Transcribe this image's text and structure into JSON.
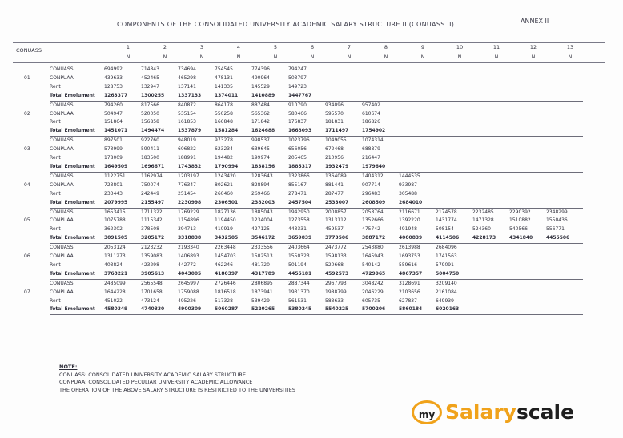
{
  "header": {
    "title": "COMPONENTS OF THE CONSOLIDATED UNIVERSITY ACADEMIC SALARY STRUCTURE II (CONUASS II)",
    "annex": "ANNEX II",
    "col_label": "CONUASS",
    "columns": [
      "1",
      "2",
      "3",
      "4",
      "5",
      "6",
      "7",
      "8",
      "9",
      "10",
      "11",
      "12",
      "13"
    ],
    "col_unit": "N"
  },
  "rows": [
    {
      "code": "01",
      "items": [
        {
          "label": "CONUASS",
          "values": [
            "694992",
            "714843",
            "734694",
            "754545",
            "774396",
            "794247"
          ]
        },
        {
          "label": "CONPUAA",
          "values": [
            "439633",
            "452465",
            "465298",
            "478131",
            "490964",
            "503797"
          ]
        },
        {
          "label": "Rent",
          "values": [
            "128753",
            "132947",
            "137141",
            "141335",
            "145529",
            "149723"
          ]
        },
        {
          "label": "Total Emolument",
          "values": [
            "1263377",
            "1300255",
            "1337133",
            "1374011",
            "1410889",
            "1447767"
          ]
        }
      ]
    },
    {
      "code": "02",
      "items": [
        {
          "label": "CONUASS",
          "values": [
            "794260",
            "817566",
            "840872",
            "864178",
            "887484",
            "910790",
            "934096",
            "957402"
          ]
        },
        {
          "label": "CONPUAA",
          "values": [
            "504947",
            "520050",
            "535154",
            "550258",
            "565362",
            "580466",
            "595570",
            "610674"
          ]
        },
        {
          "label": "Rent",
          "values": [
            "151864",
            "156858",
            "161853",
            "166848",
            "171842",
            "176837",
            "181831",
            "186826"
          ]
        },
        {
          "label": "Total Emolument",
          "values": [
            "1451071",
            "1494474",
            "1537879",
            "1581284",
            "1624688",
            "1668093",
            "1711497",
            "1754902"
          ]
        }
      ]
    },
    {
      "code": "03",
      "items": [
        {
          "label": "CONUASS",
          "values": [
            "897501",
            "922760",
            "948019",
            "973278",
            "998537",
            "1023796",
            "1049055",
            "1074314"
          ]
        },
        {
          "label": "CONPUAA",
          "values": [
            "573999",
            "590411",
            "606822",
            "623234",
            "639645",
            "656056",
            "672468",
            "688879"
          ]
        },
        {
          "label": "Rent",
          "values": [
            "178009",
            "183500",
            "188991",
            "194482",
            "199974",
            "205465",
            "210956",
            "216447"
          ]
        },
        {
          "label": "Total Emolument",
          "values": [
            "1649509",
            "1696671",
            "1743832",
            "1790994",
            "1838156",
            "1885317",
            "1932479",
            "1979640"
          ]
        }
      ]
    },
    {
      "code": "04",
      "items": [
        {
          "label": "CONUASS",
          "values": [
            "1122751",
            "1162974",
            "1203197",
            "1243420",
            "1283643",
            "1323866",
            "1364089",
            "1404312",
            "1444535"
          ]
        },
        {
          "label": "CONPUAA",
          "values": [
            "723801",
            "750074",
            "776347",
            "802621",
            "828894",
            "855167",
            "881441",
            "907714",
            "933987"
          ]
        },
        {
          "label": "Rent",
          "values": [
            "233443",
            "242449",
            "251454",
            "260460",
            "269466",
            "278471",
            "287477",
            "296483",
            "305488"
          ]
        },
        {
          "label": "Total Emolument",
          "values": [
            "2079995",
            "2155497",
            "2230998",
            "2306501",
            "2382003",
            "2457504",
            "2533007",
            "2608509",
            "2684010"
          ]
        }
      ]
    },
    {
      "code": "05",
      "items": [
        {
          "label": "CONUASS",
          "values": [
            "1653415",
            "1711322",
            "1769229",
            "1827136",
            "1885043",
            "1942950",
            "2000857",
            "2058764",
            "2116671",
            "2174578",
            "2232485",
            "2290392",
            "2348299"
          ]
        },
        {
          "label": "CONPUAA",
          "values": [
            "1075788",
            "1115342",
            "1154896",
            "1194450",
            "1234004",
            "1273558",
            "1313112",
            "1352666",
            "1392220",
            "1431774",
            "1471328",
            "1510882",
            "1550436"
          ]
        },
        {
          "label": "Rent",
          "values": [
            "362302",
            "378508",
            "394713",
            "410919",
            "427125",
            "443331",
            "459537",
            "475742",
            "491948",
            "508154",
            "524360",
            "540566",
            "556771"
          ]
        },
        {
          "label": "Total Emolument",
          "values": [
            "3091505",
            "3205172",
            "3318838",
            "3432505",
            "3546172",
            "3659839",
            "3773506",
            "3887172",
            "4000839",
            "4114506",
            "4228173",
            "4341840",
            "4455506"
          ]
        }
      ]
    },
    {
      "code": "06",
      "items": [
        {
          "label": "CONUASS",
          "values": [
            "2053124",
            "2123232",
            "2193340",
            "2263448",
            "2333556",
            "2403664",
            "2473772",
            "2543880",
            "2613988",
            "2684096"
          ]
        },
        {
          "label": "CONPUAA",
          "values": [
            "1311273",
            "1359083",
            "1406893",
            "1454703",
            "1502513",
            "1550323",
            "1598133",
            "1645943",
            "1693753",
            "1741563"
          ]
        },
        {
          "label": "Rent",
          "values": [
            "403824",
            "423298",
            "442772",
            "462246",
            "481720",
            "501194",
            "520668",
            "540142",
            "559616",
            "579091"
          ]
        },
        {
          "label": "Total Emolument",
          "values": [
            "3768221",
            "3905613",
            "4043005",
            "4180397",
            "4317789",
            "4455181",
            "4592573",
            "4729965",
            "4867357",
            "5004750"
          ]
        }
      ]
    },
    {
      "code": "07",
      "items": [
        {
          "label": "CONUASS",
          "values": [
            "2485099",
            "2565548",
            "2645997",
            "2726446",
            "2806895",
            "2887344",
            "2967793",
            "3048242",
            "3128691",
            "3209140"
          ]
        },
        {
          "label": "CONPUAA",
          "values": [
            "1644228",
            "1701658",
            "1759088",
            "1816518",
            "1873941",
            "1931370",
            "1988799",
            "2046229",
            "2103656",
            "2161084"
          ]
        },
        {
          "label": "Rent",
          "values": [
            "451022",
            "473124",
            "495226",
            "517328",
            "539429",
            "561531",
            "583633",
            "605735",
            "627837",
            "649939"
          ]
        },
        {
          "label": "Total Emolument",
          "values": [
            "4580349",
            "4740330",
            "4900309",
            "5060287",
            "5220265",
            "5380245",
            "5540225",
            "5700206",
            "5860184",
            "6020163"
          ]
        }
      ]
    }
  ],
  "notes": {
    "heading": "NOTE:",
    "lines": [
      "CONUASS:  CONSOLIDATED UNIVERSITY ACADEMIC SALARY STRUCTURE",
      "CONPUAA:  CONSOLIDATED PECULIAR UNIVERSITY ACADEMIC ALLOWANCE",
      "THE OPERATION OF THE ABOVE SALARY STRUCTURE IS RESTRICTED TO THE UNIVERSITIES"
    ]
  },
  "logo": {
    "badge": "my",
    "part1": "Salary",
    "part2": "scale",
    "color_accent": "#f0a21a",
    "color_dark": "#1f1f1f"
  }
}
